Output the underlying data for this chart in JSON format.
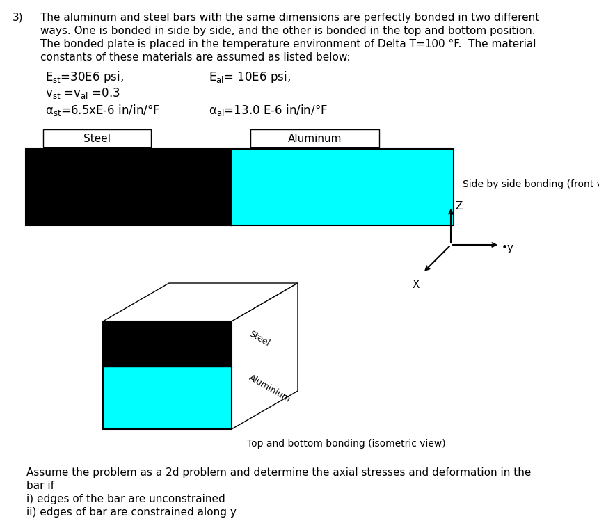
{
  "bg_color": "#FFFFFF",
  "steel_color": "#000000",
  "aluminum_color": "#00FFFF",
  "steel_label": "Steel",
  "aluminum_label": "Aluminum",
  "side_label": "Side by side bonding (front view)",
  "isometric_label": "Top and bottom bonding (isometric view)",
  "para_lines": [
    "The aluminum and steel bars with the same dimensions are perfectly bonded in two different",
    "ways. One is bonded in side by side, and the other is bonded in the top and bottom position.",
    "The bonded plate is placed in the temperature environment of Delta T=100 °F.  The material",
    "constants of these materials are assumed as listed below:"
  ],
  "assume_lines": [
    "Assume the problem as a 2d problem and determine the axial stresses and deformation in the",
    "bar if",
    "i) edges of the bar are unconstrained",
    "ii) edges of bar are constrained along y"
  ],
  "fig_w": 8.61,
  "fig_h": 7.49,
  "dpi": 100
}
